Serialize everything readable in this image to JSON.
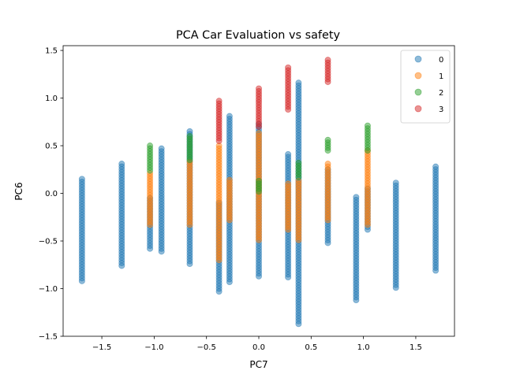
{
  "chart_data": {
    "type": "scatter",
    "title": "PCA Car Evaluation vs safety",
    "xlabel": "PC7",
    "ylabel": "PC6",
    "xlim": [
      -1.87,
      1.87
    ],
    "ylim": [
      -1.5,
      1.55
    ],
    "x_ticks": [
      -1.5,
      -1.0,
      -0.5,
      0.0,
      0.5,
      1.0,
      1.5
    ],
    "x_tick_labels": [
      "−1.5",
      "−1.0",
      "−0.5",
      "0.0",
      "0.5",
      "1.0",
      "1.5"
    ],
    "y_ticks": [
      -1.5,
      -1.0,
      -0.5,
      0.0,
      0.5,
      1.0,
      1.5
    ],
    "y_tick_labels": [
      "−1.5",
      "−1.0",
      "−0.5",
      "0.0",
      "0.5",
      "1.0",
      "1.5"
    ],
    "grid": false,
    "legend_position": "top-right",
    "marker_alpha": 0.5,
    "series": [
      {
        "name": "0",
        "color": "#1f77b4",
        "columns": [
          {
            "x": -1.69,
            "y_min": -0.92,
            "y_max": 0.15
          },
          {
            "x": -1.31,
            "y_min": -0.76,
            "y_max": 0.31
          },
          {
            "x": -1.04,
            "y_min": -0.58,
            "y_max": -0.05
          },
          {
            "x": -0.93,
            "y_min": -0.61,
            "y_max": 0.47
          },
          {
            "x": -0.66,
            "y_min": -0.74,
            "y_max": 0.65
          },
          {
            "x": -0.38,
            "y_min": -1.03,
            "y_max": -0.1
          },
          {
            "x": -0.28,
            "y_min": -0.93,
            "y_max": 0.81
          },
          {
            "x": 0.0,
            "y_min": -0.87,
            "y_max": 0.73
          },
          {
            "x": 0.28,
            "y_min": -0.88,
            "y_max": 0.41
          },
          {
            "x": 0.38,
            "y_min": -1.37,
            "y_max": 1.16
          },
          {
            "x": 0.66,
            "y_min": -0.52,
            "y_max": 0.25
          },
          {
            "x": 0.93,
            "y_min": -1.12,
            "y_max": -0.04
          },
          {
            "x": 1.04,
            "y_min": -0.38,
            "y_max": 0.05
          },
          {
            "x": 1.31,
            "y_min": -0.99,
            "y_max": 0.11
          },
          {
            "x": 1.69,
            "y_min": -0.81,
            "y_max": 0.28
          }
        ]
      },
      {
        "name": "1",
        "color": "#ff7f0e",
        "columns": [
          {
            "x": -1.04,
            "y_min": -0.33,
            "y_max": 0.21
          },
          {
            "x": -0.66,
            "y_min": -0.33,
            "y_max": 0.33
          },
          {
            "x": -0.38,
            "y_min": -0.7,
            "y_max": 0.5
          },
          {
            "x": -0.28,
            "y_min": -0.28,
            "y_max": 0.14
          },
          {
            "x": 0.0,
            "y_min": -0.49,
            "y_max": 0.63
          },
          {
            "x": 0.28,
            "y_min": -0.38,
            "y_max": 0.1
          },
          {
            "x": 0.38,
            "y_min": -0.49,
            "y_max": 0.13
          },
          {
            "x": 0.66,
            "y_min": -0.28,
            "y_max": 0.31
          },
          {
            "x": 1.04,
            "y_min": -0.33,
            "y_max": 0.45
          }
        ]
      },
      {
        "name": "2",
        "color": "#2ca02c",
        "columns": [
          {
            "x": -1.04,
            "y_min": 0.24,
            "y_max": 0.5
          },
          {
            "x": -0.66,
            "y_min": 0.35,
            "y_max": 0.6
          },
          {
            "x": 0.0,
            "y_min": 0.02,
            "y_max": 0.13
          },
          {
            "x": 0.38,
            "y_min": 0.17,
            "y_max": 0.32
          },
          {
            "x": 0.66,
            "y_min": 0.45,
            "y_max": 0.56
          },
          {
            "x": 1.04,
            "y_min": 0.45,
            "y_max": 0.71
          }
        ]
      },
      {
        "name": "3",
        "color": "#d62728",
        "columns": [
          {
            "x": -0.38,
            "y_min": 0.55,
            "y_max": 0.97
          },
          {
            "x": 0.0,
            "y_min": 0.7,
            "y_max": 1.1
          },
          {
            "x": 0.28,
            "y_min": 0.88,
            "y_max": 1.32
          },
          {
            "x": 0.66,
            "y_min": 1.17,
            "y_max": 1.4
          }
        ]
      }
    ]
  }
}
